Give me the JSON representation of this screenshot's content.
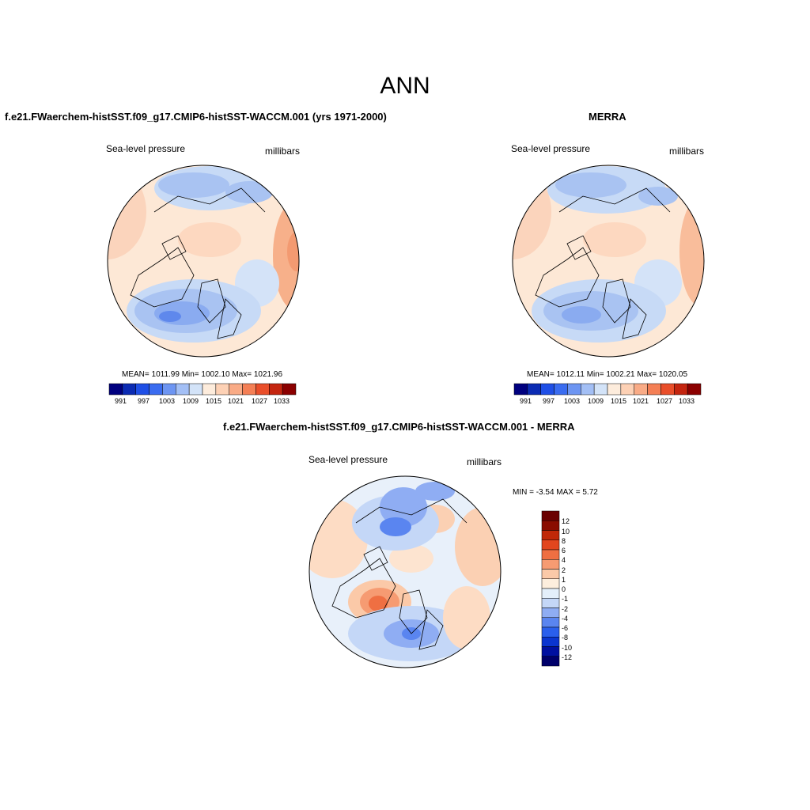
{
  "page": {
    "title": "ANN"
  },
  "colors": {
    "palette": [
      "#00007f",
      "#0b2bb3",
      "#1f4fe6",
      "#3a6cf0",
      "#6d95f2",
      "#a3bff5",
      "#d3e3f8",
      "#fdecdc",
      "#fdd1b5",
      "#f9ab86",
      "#f47f55",
      "#e94e2a",
      "#c4250f",
      "#8b0000"
    ],
    "diff_palette": [
      "#00006a",
      "#0010a0",
      "#0a35d0",
      "#2a5fec",
      "#5a85f0",
      "#8fadf3",
      "#c4d7f7",
      "#e4effa",
      "#fdeedd",
      "#fbc9a8",
      "#f69b72",
      "#ef6f42",
      "#e2461e",
      "#c02808",
      "#8a0c00",
      "#6a0000"
    ],
    "ocean_blue": "#a9c3f2",
    "ocean_light": "#d8e6f8",
    "land_peach": "#fde4d2",
    "rim_orange": "#f7b08a",
    "coast": "#000000"
  },
  "panels": [
    {
      "id": "model",
      "title": "f.e21.FWaerchem-histSST.f09_g17.CMIP6-histSST-WACCM.001 (yrs 1971-2000)",
      "left_label": "Sea-level pressure",
      "right_label": "millibars",
      "stats": "MEAN= 1011.99  Min= 1002.10  Max= 1021.96",
      "colorbar_ticks": [
        "991",
        "997",
        "1003",
        "1009",
        "1015",
        "1021",
        "1027",
        "1033"
      ]
    },
    {
      "id": "merra",
      "title": "MERRA",
      "left_label": "Sea-level pressure",
      "right_label": "millibars",
      "stats": "MEAN= 1012.11  Min= 1002.21  Max= 1020.05",
      "colorbar_ticks": [
        "991",
        "997",
        "1003",
        "1009",
        "1015",
        "1021",
        "1027",
        "1033"
      ]
    },
    {
      "id": "diff",
      "title": "f.e21.FWaerchem-histSST.f09_g17.CMIP6-histSST-WACCM.001 - MERRA",
      "left_label": "Sea-level pressure",
      "right_label": "millibars",
      "minmax": "MIN =  -3.54 MAX =   5.72",
      "colorbar_ticks": [
        "12",
        "10",
        "8",
        "6",
        "4",
        "2",
        "1",
        "0",
        "-1",
        "-2",
        "-4",
        "-6",
        "-8",
        "-10",
        "-12"
      ]
    }
  ]
}
